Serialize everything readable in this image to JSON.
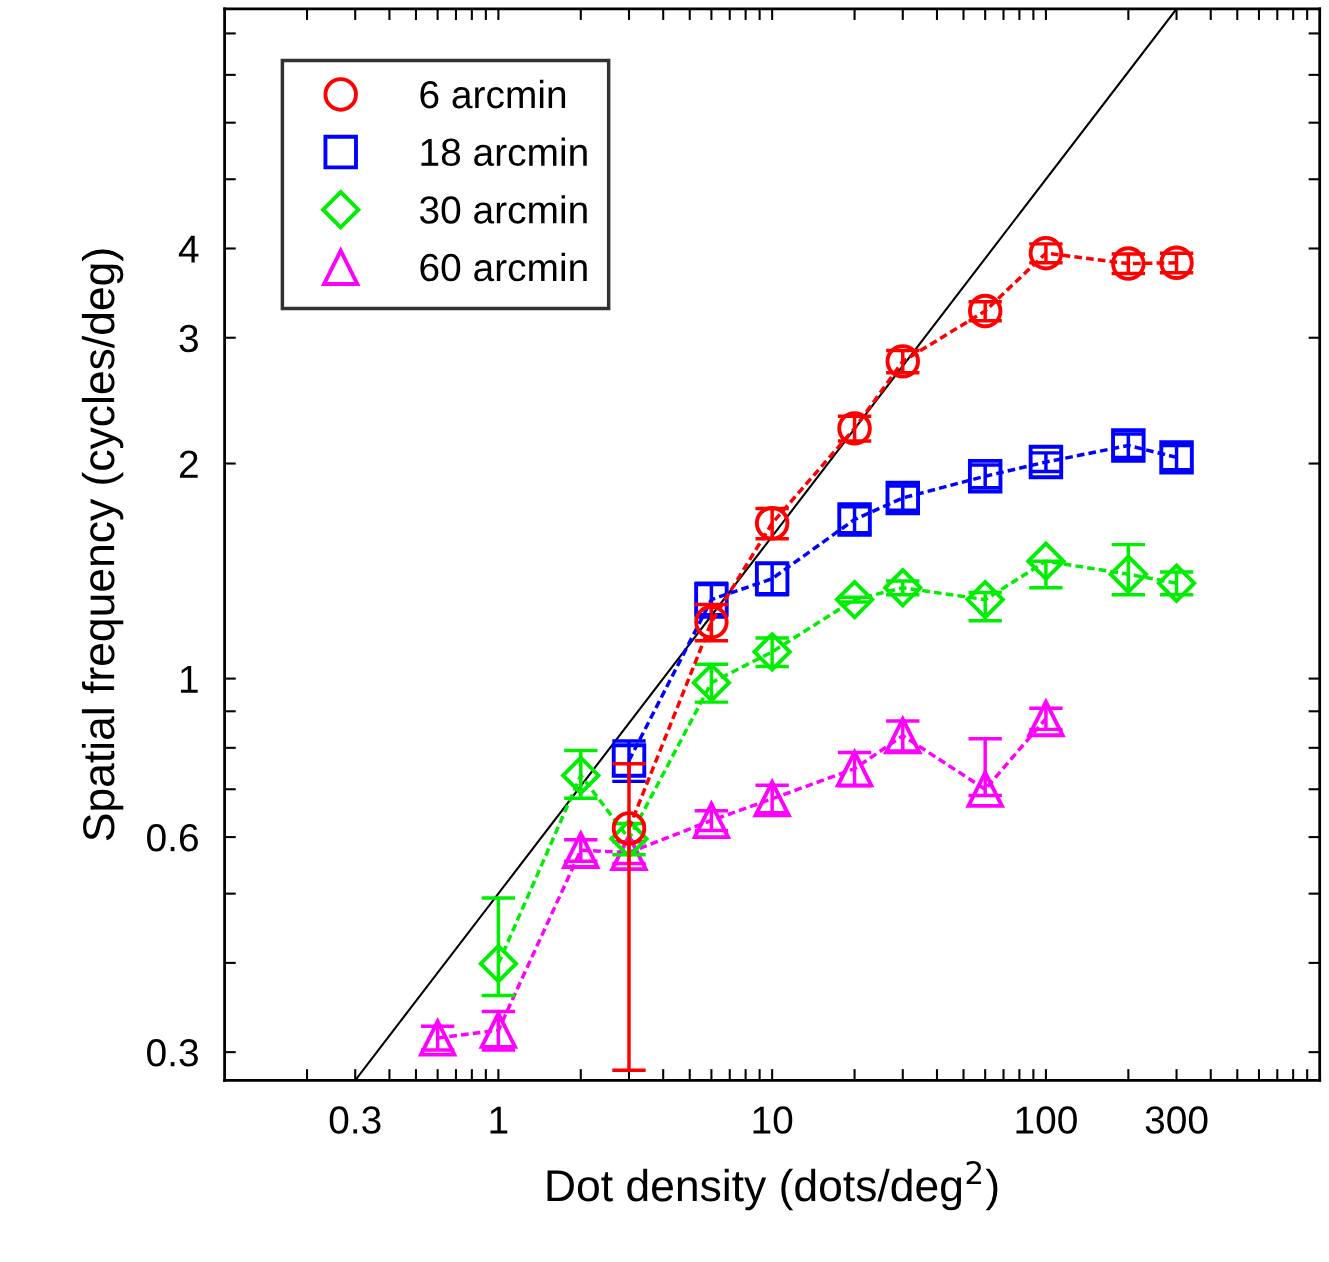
{
  "chart_data": {
    "type": "line",
    "xlabel": "Dot density (dots/deg$^{2}$)",
    "ylabel": "Spatial frequency (cycles/deg)",
    "log": "xy",
    "xlim": [
      0.1,
      1000
    ],
    "ylim": [
      0.274,
      8.66
    ],
    "xticks": [
      {
        "value": 0.2,
        "label": null
      },
      0.3,
      {
        "value": 0.4,
        "label": null
      },
      {
        "value": 0.5,
        "label": null
      },
      {
        "value": 0.6,
        "label": null
      },
      {
        "value": 0.7,
        "label": null
      },
      {
        "value": 0.8,
        "label": null
      },
      {
        "value": 0.9,
        "label": null
      },
      1,
      {
        "value": 2,
        "label": null
      },
      {
        "value": 3,
        "label": null
      },
      {
        "value": 4,
        "label": null
      },
      {
        "value": 5,
        "label": null
      },
      {
        "value": 6,
        "label": null
      },
      {
        "value": 7,
        "label": null
      },
      {
        "value": 8,
        "label": null
      },
      {
        "value": 9,
        "label": null
      },
      10,
      {
        "value": 20,
        "label": null
      },
      {
        "value": 30,
        "label": null
      },
      {
        "value": 40,
        "label": null
      },
      {
        "value": 50,
        "label": null
      },
      {
        "value": 60,
        "label": null
      },
      {
        "value": 70,
        "label": null
      },
      {
        "value": 80,
        "label": null
      },
      {
        "value": 90,
        "label": null
      },
      100,
      {
        "value": 200,
        "label": null
      },
      300,
      {
        "value": 400,
        "label": null
      },
      {
        "value": 500,
        "label": null
      },
      {
        "value": 600,
        "label": null
      },
      {
        "value": 700,
        "label": null
      },
      {
        "value": 800,
        "label": null
      },
      {
        "value": 900,
        "label": null
      }
    ],
    "yticks": [
      0.3,
      {
        "value": 0.4,
        "label": null
      },
      {
        "value": 0.5,
        "label": null
      },
      0.6,
      {
        "value": 0.7,
        "label": null
      },
      {
        "value": 0.8,
        "label": null
      },
      {
        "value": 0.9,
        "label": null
      },
      1,
      2,
      3,
      4,
      {
        "value": 5,
        "label": null
      },
      {
        "value": 6,
        "label": null
      },
      {
        "value": 7,
        "label": null
      },
      {
        "value": 8,
        "label": null
      }
    ],
    "grid": false,
    "legend": "top left",
    "line_style": "dashed",
    "series": [
      {
        "name": "6 arcmin",
        "color": "#ff0000",
        "marker": "circle",
        "x": [
          3,
          6,
          10,
          20,
          30,
          60,
          100,
          200,
          300
        ],
        "values": [
          0.617,
          1.2,
          1.65,
          2.24,
          2.78,
          3.27,
          3.94,
          3.81,
          3.82
        ],
        "errors": [
          [
            0.283,
            0.76
          ],
          0.07,
          0.08,
          0.09,
          0.1,
          0.1,
          0.12,
          0.12,
          0.12
        ]
      },
      {
        "name": "18 arcmin",
        "color": "#0000ff",
        "marker": "square",
        "x": [
          3,
          6,
          10,
          20,
          30,
          60,
          100,
          200,
          300
        ],
        "values": [
          0.768,
          1.29,
          1.38,
          1.67,
          1.79,
          1.92,
          2.01,
          2.12,
          2.04
        ],
        "errors": [
          0.05,
          0.07,
          0.07,
          0.07,
          0.07,
          0.07,
          0.06,
          0.08,
          0.08
        ]
      },
      {
        "name": "30 arcmin",
        "color": "#00ee00",
        "marker": "diamond",
        "x": [
          1,
          2,
          3,
          6,
          10,
          20,
          30,
          60,
          100,
          200,
          300
        ],
        "values": [
          0.399,
          0.732,
          0.597,
          0.987,
          1.09,
          1.29,
          1.34,
          1.29,
          1.46,
          1.4,
          1.36
        ],
        "errors": [
          [
            0.36,
            0.493
          ],
          [
            0.68,
            0.793
          ],
          0.03,
          0.06,
          0.05,
          0.01,
          0.03,
          [
            1.205,
            1.32
          ],
          [
            1.34,
            1.46
          ],
          [
            1.31,
            1.54
          ],
          0.05
        ]
      },
      {
        "name": "60 arcmin",
        "color": "#ff00ff",
        "marker": "triangle",
        "x": [
          0.6,
          1,
          2,
          3,
          6,
          10,
          20,
          30,
          60,
          100
        ],
        "values": [
          0.314,
          0.322,
          0.575,
          0.571,
          0.633,
          0.679,
          0.748,
          0.832,
          0.7,
          0.879
        ],
        "errors": [
          0.012,
          0.02,
          0.02,
          0.02,
          0.02,
          0.03,
          0.04,
          0.04,
          [
            0.686,
            0.824
          ],
          0.03
        ]
      },
      {
        "color": "#000000",
        "marker": "none",
        "line_style": "solid",
        "x": [
          0.3,
          300
        ],
        "values": [
          0.274,
          8.66
        ]
      }
    ]
  }
}
